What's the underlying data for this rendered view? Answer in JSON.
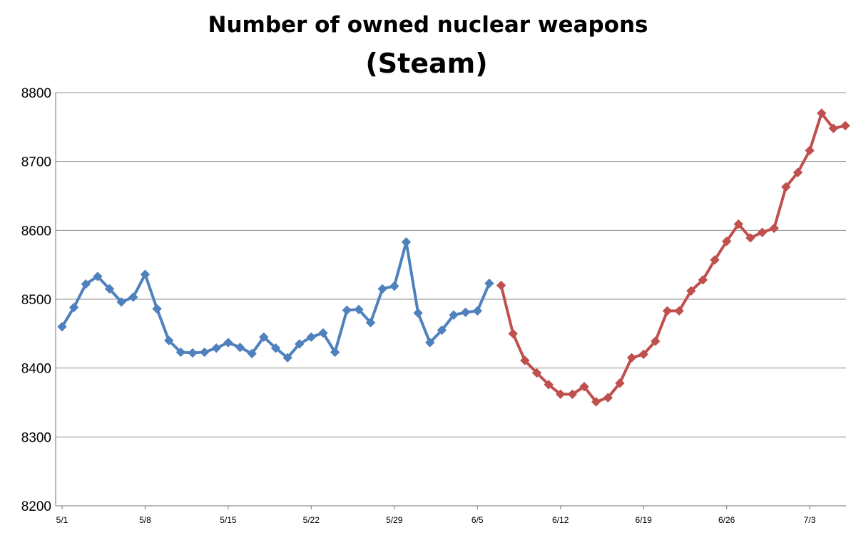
{
  "chart_data": {
    "type": "line",
    "title": "Number of owned nuclear weapons",
    "subtitle": "(Steam)",
    "xlabel": "",
    "ylabel": "",
    "ylim": [
      8200,
      8800
    ],
    "yticks": [
      8200,
      8300,
      8400,
      8500,
      8600,
      8700,
      8800
    ],
    "x_tick_labels": [
      "5/1",
      "5/8",
      "5/15",
      "5/22",
      "5/29",
      "6/5",
      "6/12",
      "6/19",
      "6/26",
      "7/3"
    ],
    "grid": "horizontal",
    "legend": "none",
    "x_start": "5/1",
    "x_step": "1 day",
    "series": [
      {
        "color": "#4f81bd",
        "start_index": 0,
        "values": [
          8460,
          8488,
          8522,
          8533,
          8515,
          8496,
          8503,
          8536,
          8486,
          8440,
          8423,
          8422,
          8423,
          8429,
          8437,
          8430,
          8421,
          8445,
          8429,
          8415,
          8435,
          8445,
          8451,
          8423,
          8484,
          8485,
          8466,
          8515,
          8519,
          8583,
          8480,
          8437,
          8455,
          8477,
          8481,
          8483,
          8523
        ]
      },
      {
        "color": "#c0504d",
        "start_index": 37,
        "values": [
          8520,
          8450,
          8411,
          8393,
          8376,
          8362,
          8362,
          8373,
          8351,
          8357,
          8378,
          8415,
          8420,
          8439,
          8483,
          8483,
          8512,
          8528,
          8557,
          8584,
          8609,
          8589,
          8597,
          8603,
          8663,
          8684,
          8716,
          8770,
          8748,
          8752
        ]
      }
    ]
  }
}
